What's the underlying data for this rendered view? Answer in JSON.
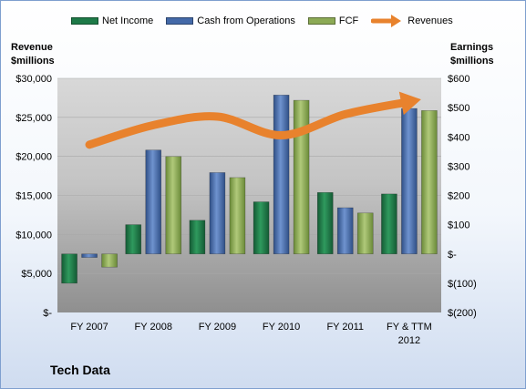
{
  "company": "Tech Data",
  "colors": {
    "net_income": "#1e7a48",
    "cash_from_operations": "#4469a8",
    "fcf": "#8caa55",
    "revenues": "#e8822d"
  },
  "chart_data": {
    "type": "bar",
    "legend_position": "top",
    "categories": [
      "FY 2007",
      "FY 2008",
      "FY 2009",
      "FY 2010",
      "FY 2011",
      "FY & TTM 2012"
    ],
    "series": [
      {
        "name": "Net Income",
        "axis": "right",
        "values": [
          -100,
          100,
          115,
          178,
          210,
          205
        ]
      },
      {
        "name": "Cash from Operations",
        "axis": "right",
        "values": [
          -12,
          355,
          278,
          543,
          158,
          497
        ]
      },
      {
        "name": "FCF",
        "axis": "right",
        "values": [
          -45,
          333,
          261,
          525,
          140,
          490
        ]
      },
      {
        "name": "Revenues",
        "axis": "left",
        "type": "line",
        "values": [
          21500,
          24000,
          25100,
          22700,
          25400,
          27000
        ]
      }
    ],
    "left_axis": {
      "label_line1": "Revenue",
      "label_line2": "$millions",
      "range": [
        0,
        30000
      ],
      "ticks": [
        "$-",
        "$5,000",
        "$10,000",
        "$15,000",
        "$20,000",
        "$25,000",
        "$30,000"
      ]
    },
    "right_axis": {
      "label_line1": "Earnings",
      "label_line2": "$millions",
      "range": [
        -200,
        600
      ],
      "ticks": [
        "$(200)",
        "$(100)",
        "$-",
        "$100",
        "$200",
        "$300",
        "$400",
        "$500",
        "$600"
      ]
    },
    "x_labels": [
      {
        "line1": "FY 2007",
        "line2": ""
      },
      {
        "line1": "FY 2008",
        "line2": ""
      },
      {
        "line1": "FY 2009",
        "line2": ""
      },
      {
        "line1": "FY 2010",
        "line2": ""
      },
      {
        "line1": "FY 2011",
        "line2": ""
      },
      {
        "line1": "FY & TTM",
        "line2": "2012"
      }
    ]
  }
}
